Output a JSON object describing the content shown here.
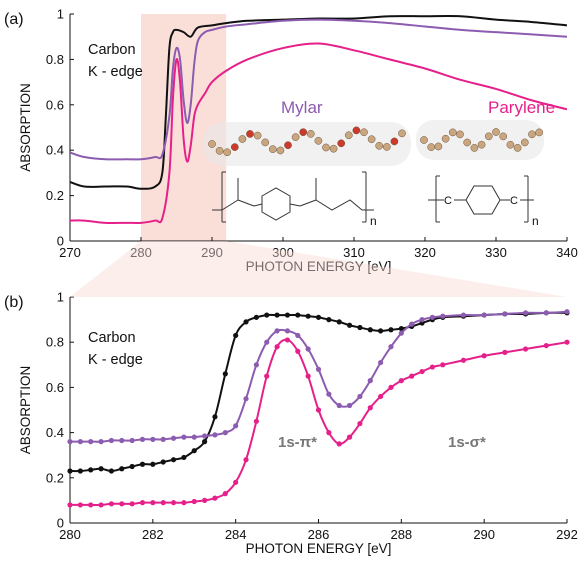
{
  "colors": {
    "black": "#111111",
    "mylar": "#8b5cb0",
    "parylene": "#e6208a",
    "highlight": "#f9d9d2",
    "molecule": "#c9a67f"
  },
  "panels": {
    "a": {
      "label": "(a)",
      "note_line1": "Carbon",
      "note_line2": "K - edge",
      "mylar_label": "Mylar",
      "parylene_label": "Parylene",
      "subscript_n": "n",
      "carbon_atom": "C"
    },
    "b": {
      "label": "(b)",
      "note_line1": "Carbon",
      "note_line2": "K - edge",
      "pi_peak_label": "1s-π*",
      "sigma_label": "1s-σ*"
    }
  },
  "chart_data": [
    {
      "panel": "a",
      "type": "line",
      "xlabel": "PHOTON ENERGY [eV]",
      "ylabel": "ABSORPTION",
      "xlim": [
        270,
        340
      ],
      "ylim": [
        0,
        1
      ],
      "xticks": [
        270,
        280,
        290,
        300,
        310,
        320,
        330,
        340
      ],
      "yticks": [
        0,
        0.2,
        0.4,
        0.6,
        0.8,
        1
      ],
      "highlight_range": [
        280,
        292
      ],
      "series": [
        {
          "name": "",
          "color_key": "black",
          "x": [
            270,
            272,
            275,
            278,
            280,
            282,
            283,
            283.5,
            284,
            284.5,
            285,
            286,
            287,
            288,
            290,
            292,
            295,
            300,
            305,
            310,
            315,
            320,
            325,
            330,
            335,
            340
          ],
          "y": [
            0.26,
            0.24,
            0.24,
            0.24,
            0.23,
            0.24,
            0.3,
            0.55,
            0.85,
            0.92,
            0.93,
            0.92,
            0.9,
            0.94,
            0.95,
            0.96,
            0.97,
            0.975,
            0.98,
            0.98,
            0.99,
            0.99,
            0.99,
            0.975,
            0.965,
            0.95
          ]
        },
        {
          "name": "Mylar",
          "color_key": "mylar",
          "x": [
            270,
            272,
            275,
            278,
            280,
            282,
            283,
            284,
            284.5,
            285,
            285.5,
            286,
            286.5,
            287,
            287.5,
            288,
            289,
            290,
            292,
            295,
            300,
            305,
            310,
            315,
            320,
            325,
            330,
            335,
            340
          ],
          "y": [
            0.39,
            0.37,
            0.36,
            0.36,
            0.36,
            0.37,
            0.38,
            0.55,
            0.76,
            0.85,
            0.8,
            0.62,
            0.52,
            0.6,
            0.78,
            0.88,
            0.92,
            0.93,
            0.945,
            0.955,
            0.97,
            0.975,
            0.97,
            0.96,
            0.945,
            0.93,
            0.92,
            0.91,
            0.9
          ]
        },
        {
          "name": "Parylene",
          "color_key": "parylene",
          "x": [
            270,
            272,
            275,
            278,
            280,
            282,
            283,
            284,
            284.5,
            285,
            285.5,
            286,
            286.5,
            287,
            287.5,
            288,
            289,
            290,
            292,
            295,
            300,
            305,
            310,
            315,
            320,
            325,
            330,
            335,
            340
          ],
          "y": [
            0.09,
            0.09,
            0.08,
            0.08,
            0.08,
            0.09,
            0.1,
            0.3,
            0.63,
            0.8,
            0.7,
            0.45,
            0.35,
            0.42,
            0.55,
            0.6,
            0.65,
            0.7,
            0.75,
            0.8,
            0.85,
            0.87,
            0.84,
            0.8,
            0.76,
            0.71,
            0.67,
            0.62,
            0.58
          ]
        }
      ]
    },
    {
      "panel": "b",
      "type": "line",
      "xlabel": "PHOTON ENERGY [eV]",
      "ylabel": "ABSORPTION",
      "xlim": [
        280,
        292
      ],
      "ylim": [
        0,
        1
      ],
      "xticks": [
        280,
        282,
        284,
        286,
        288,
        290,
        292
      ],
      "yticks": [
        0,
        0.2,
        0.4,
        0.6,
        0.8,
        1
      ],
      "series": [
        {
          "name": "",
          "color_key": "black",
          "x": [
            280,
            280.25,
            280.5,
            280.75,
            281,
            281.25,
            281.5,
            281.75,
            282,
            282.25,
            282.5,
            282.75,
            283,
            283.25,
            283.5,
            283.75,
            284,
            284.25,
            284.5,
            284.75,
            285,
            285.25,
            285.5,
            285.75,
            286,
            286.25,
            286.5,
            286.75,
            287,
            287.25,
            287.5,
            287.75,
            288,
            288.25,
            288.5,
            288.75,
            289,
            289.5,
            290,
            290.5,
            291,
            291.5,
            292
          ],
          "y": [
            0.23,
            0.23,
            0.235,
            0.24,
            0.23,
            0.24,
            0.25,
            0.26,
            0.26,
            0.27,
            0.28,
            0.29,
            0.32,
            0.36,
            0.47,
            0.66,
            0.83,
            0.89,
            0.91,
            0.92,
            0.92,
            0.92,
            0.92,
            0.915,
            0.91,
            0.9,
            0.89,
            0.875,
            0.865,
            0.855,
            0.85,
            0.855,
            0.86,
            0.87,
            0.885,
            0.9,
            0.91,
            0.915,
            0.92,
            0.925,
            0.925,
            0.93,
            0.93
          ]
        },
        {
          "name": "Mylar",
          "color_key": "mylar",
          "x": [
            280,
            280.25,
            280.5,
            280.75,
            281,
            281.25,
            281.5,
            281.75,
            282,
            282.25,
            282.5,
            282.75,
            283,
            283.25,
            283.5,
            283.75,
            284,
            284.25,
            284.5,
            284.75,
            285,
            285.25,
            285.5,
            285.75,
            286,
            286.25,
            286.5,
            286.75,
            287,
            287.25,
            287.5,
            287.75,
            288,
            288.25,
            288.5,
            288.75,
            289,
            289.5,
            290,
            290.5,
            291,
            291.5,
            292
          ],
          "y": [
            0.36,
            0.36,
            0.36,
            0.36,
            0.365,
            0.365,
            0.365,
            0.37,
            0.37,
            0.37,
            0.375,
            0.38,
            0.38,
            0.385,
            0.39,
            0.4,
            0.43,
            0.55,
            0.7,
            0.8,
            0.85,
            0.85,
            0.83,
            0.77,
            0.68,
            0.57,
            0.52,
            0.52,
            0.56,
            0.63,
            0.71,
            0.78,
            0.84,
            0.88,
            0.9,
            0.91,
            0.915,
            0.92,
            0.92,
            0.925,
            0.93,
            0.93,
            0.935
          ]
        },
        {
          "name": "Parylene",
          "color_key": "parylene",
          "x": [
            280,
            280.25,
            280.5,
            280.75,
            281,
            281.25,
            281.5,
            281.75,
            282,
            282.25,
            282.5,
            282.75,
            283,
            283.25,
            283.5,
            283.75,
            284,
            284.25,
            284.5,
            284.75,
            285,
            285.25,
            285.5,
            285.75,
            286,
            286.25,
            286.5,
            286.75,
            287,
            287.25,
            287.5,
            287.75,
            288,
            288.25,
            288.5,
            288.75,
            289,
            289.5,
            290,
            290.5,
            291,
            291.5,
            292
          ],
          "y": [
            0.08,
            0.08,
            0.08,
            0.08,
            0.085,
            0.085,
            0.085,
            0.09,
            0.09,
            0.09,
            0.09,
            0.09,
            0.095,
            0.1,
            0.11,
            0.13,
            0.18,
            0.28,
            0.45,
            0.65,
            0.78,
            0.81,
            0.76,
            0.65,
            0.5,
            0.4,
            0.35,
            0.38,
            0.44,
            0.51,
            0.56,
            0.6,
            0.63,
            0.65,
            0.67,
            0.69,
            0.7,
            0.72,
            0.74,
            0.755,
            0.77,
            0.785,
            0.8
          ]
        }
      ]
    }
  ]
}
